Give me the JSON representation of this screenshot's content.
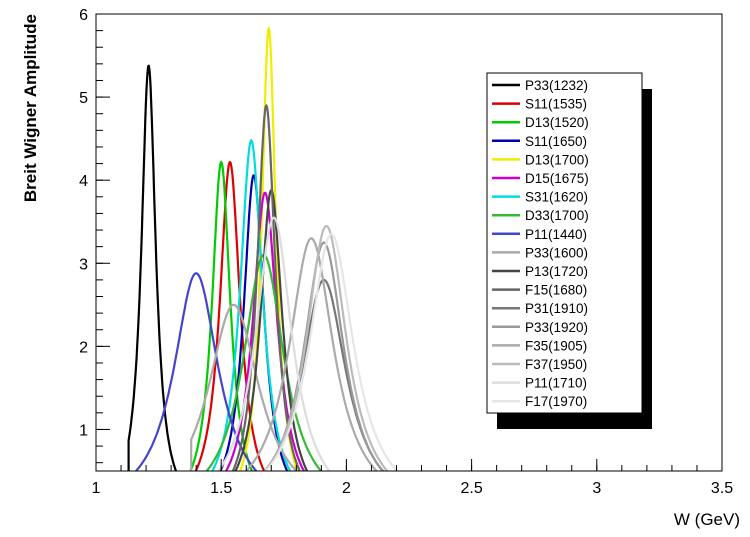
{
  "chart_data": {
    "type": "line",
    "title": "",
    "xlabel": "W (GeV)",
    "ylabel": "Breit Wigner Amplitude",
    "xlim": [
      1,
      3.5
    ],
    "ylim": [
      0.5,
      6
    ],
    "xticks": [
      1,
      1.5,
      2,
      2.5,
      3,
      3.5
    ],
    "xtick_labels": [
      "1",
      "1.5",
      "2",
      "2.5",
      "3",
      "3.5"
    ],
    "yticks": [
      1,
      2,
      3,
      4,
      5,
      6
    ],
    "ytick_labels": [
      "1",
      "2",
      "3",
      "4",
      "5",
      "6"
    ],
    "grid": false,
    "legend_position": "top-right",
    "series": [
      {
        "name": "P33(1232)",
        "color": "#000000",
        "peak_x": 1.21,
        "peak_y": 5.38,
        "width": 0.07,
        "x_min": 1.13,
        "x_max": 1.5
      },
      {
        "name": "S11(1535)",
        "color": "#dd0000",
        "peak_x": 1.535,
        "peak_y": 4.22,
        "width": 0.1,
        "x_min": 1.35,
        "x_max": 1.95
      },
      {
        "name": "D13(1520)",
        "color": "#00cc00",
        "peak_x": 1.5,
        "peak_y": 4.22,
        "width": 0.09,
        "x_min": 1.33,
        "x_max": 1.92
      },
      {
        "name": "S11(1650)",
        "color": "#0000aa",
        "peak_x": 1.63,
        "peak_y": 4.06,
        "width": 0.1,
        "x_min": 1.45,
        "x_max": 2.0
      },
      {
        "name": "D13(1700)",
        "color": "#eeee00",
        "peak_x": 1.69,
        "peak_y": 5.83,
        "width": 0.07,
        "x_min": 1.55,
        "x_max": 1.95
      },
      {
        "name": "D15(1675)",
        "color": "#cc00cc",
        "peak_x": 1.675,
        "peak_y": 3.85,
        "width": 0.12,
        "x_min": 1.45,
        "x_max": 2.0
      },
      {
        "name": "S31(1620)",
        "color": "#00dddd",
        "peak_x": 1.62,
        "peak_y": 4.48,
        "width": 0.11,
        "x_min": 1.42,
        "x_max": 2.0
      },
      {
        "name": "D33(1700)",
        "color": "#33bb33",
        "peak_x": 1.67,
        "peak_y": 3.1,
        "width": 0.2,
        "x_min": 1.35,
        "x_max": 2.02
      },
      {
        "name": "P11(1440)",
        "color": "#4444cc",
        "peak_x": 1.4,
        "peak_y": 2.88,
        "width": 0.22,
        "x_min": 1.16,
        "x_max": 1.85
      },
      {
        "name": "P33(1600)",
        "color": "#aaaaaa",
        "peak_x": 1.55,
        "peak_y": 2.5,
        "width": 0.25,
        "x_min": 1.38,
        "x_max": 2.05
      },
      {
        "name": "P13(1720)",
        "color": "#444444",
        "peak_x": 1.7,
        "peak_y": 3.88,
        "width": 0.11,
        "x_min": 1.5,
        "x_max": 2.02
      },
      {
        "name": "F15(1680)",
        "color": "#666666",
        "peak_x": 1.68,
        "peak_y": 4.9,
        "width": 0.09,
        "x_min": 1.5,
        "x_max": 1.95
      },
      {
        "name": "P31(1910)",
        "color": "#777777",
        "peak_x": 1.91,
        "peak_y": 2.8,
        "width": 0.22,
        "x_min": 1.6,
        "x_max": 2.25
      },
      {
        "name": "P33(1920)",
        "color": "#999999",
        "peak_x": 1.91,
        "peak_y": 3.25,
        "width": 0.2,
        "x_min": 1.6,
        "x_max": 2.25
      },
      {
        "name": "F35(1905)",
        "color": "#aaaaaa",
        "peak_x": 1.86,
        "peak_y": 3.3,
        "width": 0.22,
        "x_min": 1.58,
        "x_max": 2.22
      },
      {
        "name": "F37(1950)",
        "color": "#bbbbbb",
        "peak_x": 1.92,
        "peak_y": 3.45,
        "width": 0.2,
        "x_min": 1.6,
        "x_max": 2.27
      },
      {
        "name": "P11(1710)",
        "color": "#dddddd",
        "peak_x": 1.71,
        "peak_y": 3.55,
        "width": 0.18,
        "x_min": 1.48,
        "x_max": 2.05
      },
      {
        "name": "F17(1970)",
        "color": "#e6e6e6",
        "peak_x": 1.94,
        "peak_y": 3.35,
        "width": 0.22,
        "x_min": 1.62,
        "x_max": 2.3
      }
    ]
  }
}
